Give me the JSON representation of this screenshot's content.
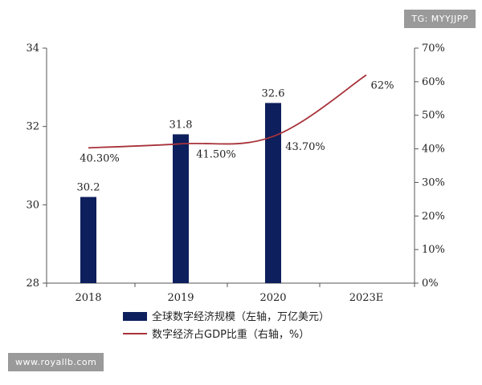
{
  "watermarks": {
    "top": "TG: MYYJJPP",
    "bottom": "www.royallb.com"
  },
  "chart_data": {
    "type": "bar",
    "categories": [
      "2018",
      "2019",
      "2020",
      "2023E"
    ],
    "series": [
      {
        "name": "全球数字经济规模（左轴，万亿美元）",
        "chart": "bar",
        "axis": "left",
        "values": [
          30.2,
          31.8,
          32.6,
          null
        ],
        "labels": [
          "30.2",
          "31.8",
          "32.6",
          ""
        ],
        "color": "#0d1f5c"
      },
      {
        "name": "数字经济占GDP比重（右轴，%）",
        "chart": "line",
        "axis": "right",
        "values": [
          40.3,
          41.5,
          43.7,
          62
        ],
        "labels": [
          "40.30%",
          "41.50%",
          "43.70%",
          "62%"
        ],
        "color": "#a8323a"
      }
    ],
    "y_left": {
      "range": [
        28,
        34
      ],
      "ticks": [
        "28",
        "30",
        "32",
        "34"
      ]
    },
    "y_right": {
      "range": [
        0,
        70
      ],
      "ticks": [
        "0%",
        "10%",
        "20%",
        "30%",
        "40%",
        "50%",
        "60%",
        "70%"
      ]
    },
    "grid": false,
    "legend_position": "bottom"
  }
}
